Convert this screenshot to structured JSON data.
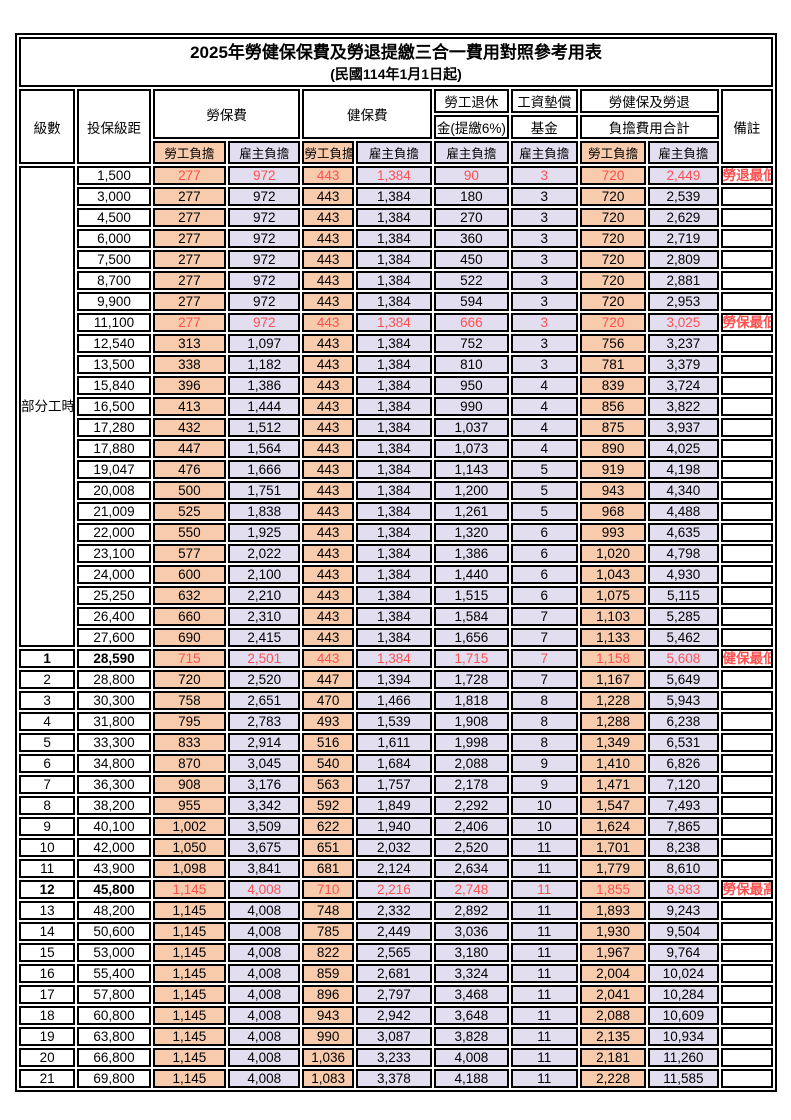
{
  "title": "2025年勞健保保費及勞退提繳三合一費用對照參考用表",
  "subtitle": "(民國114年1月1日起)",
  "header": {
    "level": "級數",
    "salary": "投保級距",
    "labor_ins": "勞保費",
    "health_ins": "健保費",
    "pension_line1": "勞工退休",
    "pension_line2": "金(提繳6%)",
    "wage_fund_line1": "工資墊償",
    "wage_fund_line2": "基金",
    "total_line1": "勞健保及勞退",
    "total_line2": "負擔費用合計",
    "note": "備註",
    "employee": "勞工負擔",
    "employer": "雇主負擔"
  },
  "part_time_label": "部分工時",
  "part_time_rowspan": 23,
  "colors": {
    "employee_fill": "#F8CBAD",
    "employer_fill": "#E2DEF0",
    "highlight_text": "#FF5050",
    "border": "#000000"
  },
  "rows": [
    {
      "lv": "",
      "sal": "1,500",
      "v": [
        "277",
        "972",
        "443",
        "1,384",
        "90",
        "3",
        "720",
        "2,449"
      ],
      "note": "勞退最低級距",
      "red": true,
      "big": false
    },
    {
      "lv": "",
      "sal": "3,000",
      "v": [
        "277",
        "972",
        "443",
        "1,384",
        "180",
        "3",
        "720",
        "2,539"
      ],
      "note": "",
      "red": false,
      "big": false
    },
    {
      "lv": "",
      "sal": "4,500",
      "v": [
        "277",
        "972",
        "443",
        "1,384",
        "270",
        "3",
        "720",
        "2,629"
      ],
      "note": "",
      "red": false,
      "big": false
    },
    {
      "lv": "",
      "sal": "6,000",
      "v": [
        "277",
        "972",
        "443",
        "1,384",
        "360",
        "3",
        "720",
        "2,719"
      ],
      "note": "",
      "red": false,
      "big": false
    },
    {
      "lv": "",
      "sal": "7,500",
      "v": [
        "277",
        "972",
        "443",
        "1,384",
        "450",
        "3",
        "720",
        "2,809"
      ],
      "note": "",
      "red": false,
      "big": false
    },
    {
      "lv": "",
      "sal": "8,700",
      "v": [
        "277",
        "972",
        "443",
        "1,384",
        "522",
        "3",
        "720",
        "2,881"
      ],
      "note": "",
      "red": false,
      "big": false
    },
    {
      "lv": "",
      "sal": "9,900",
      "v": [
        "277",
        "972",
        "443",
        "1,384",
        "594",
        "3",
        "720",
        "2,953"
      ],
      "note": "",
      "red": false,
      "big": false
    },
    {
      "lv": "",
      "sal": "11,100",
      "v": [
        "277",
        "972",
        "443",
        "1,384",
        "666",
        "3",
        "720",
        "3,025"
      ],
      "note": "勞保最低級距",
      "red": true,
      "big": false
    },
    {
      "lv": "",
      "sal": "12,540",
      "v": [
        "313",
        "1,097",
        "443",
        "1,384",
        "752",
        "3",
        "756",
        "3,237"
      ],
      "note": "",
      "red": false,
      "big": false
    },
    {
      "lv": "",
      "sal": "13,500",
      "v": [
        "338",
        "1,182",
        "443",
        "1,384",
        "810",
        "3",
        "781",
        "3,379"
      ],
      "note": "",
      "red": false,
      "big": false
    },
    {
      "lv": "",
      "sal": "15,840",
      "v": [
        "396",
        "1,386",
        "443",
        "1,384",
        "950",
        "4",
        "839",
        "3,724"
      ],
      "note": "",
      "red": false,
      "big": false
    },
    {
      "lv": "",
      "sal": "16,500",
      "v": [
        "413",
        "1,444",
        "443",
        "1,384",
        "990",
        "4",
        "856",
        "3,822"
      ],
      "note": "",
      "red": false,
      "big": false
    },
    {
      "lv": "",
      "sal": "17,280",
      "v": [
        "432",
        "1,512",
        "443",
        "1,384",
        "1,037",
        "4",
        "875",
        "3,937"
      ],
      "note": "",
      "red": false,
      "big": false
    },
    {
      "lv": "",
      "sal": "17,880",
      "v": [
        "447",
        "1,564",
        "443",
        "1,384",
        "1,073",
        "4",
        "890",
        "4,025"
      ],
      "note": "",
      "red": false,
      "big": false
    },
    {
      "lv": "",
      "sal": "19,047",
      "v": [
        "476",
        "1,666",
        "443",
        "1,384",
        "1,143",
        "5",
        "919",
        "4,198"
      ],
      "note": "",
      "red": false,
      "big": false
    },
    {
      "lv": "",
      "sal": "20,008",
      "v": [
        "500",
        "1,751",
        "443",
        "1,384",
        "1,200",
        "5",
        "943",
        "4,340"
      ],
      "note": "",
      "red": false,
      "big": false
    },
    {
      "lv": "",
      "sal": "21,009",
      "v": [
        "525",
        "1,838",
        "443",
        "1,384",
        "1,261",
        "5",
        "968",
        "4,488"
      ],
      "note": "",
      "red": false,
      "big": false
    },
    {
      "lv": "",
      "sal": "22,000",
      "v": [
        "550",
        "1,925",
        "443",
        "1,384",
        "1,320",
        "6",
        "993",
        "4,635"
      ],
      "note": "",
      "red": false,
      "big": false
    },
    {
      "lv": "",
      "sal": "23,100",
      "v": [
        "577",
        "2,022",
        "443",
        "1,384",
        "1,386",
        "6",
        "1,020",
        "4,798"
      ],
      "note": "",
      "red": false,
      "big": false
    },
    {
      "lv": "",
      "sal": "24,000",
      "v": [
        "600",
        "2,100",
        "443",
        "1,384",
        "1,440",
        "6",
        "1,043",
        "4,930"
      ],
      "note": "",
      "red": false,
      "big": false
    },
    {
      "lv": "",
      "sal": "25,250",
      "v": [
        "632",
        "2,210",
        "443",
        "1,384",
        "1,515",
        "6",
        "1,075",
        "5,115"
      ],
      "note": "",
      "red": false,
      "big": false
    },
    {
      "lv": "",
      "sal": "26,400",
      "v": [
        "660",
        "2,310",
        "443",
        "1,384",
        "1,584",
        "7",
        "1,103",
        "5,285"
      ],
      "note": "",
      "red": false,
      "big": false
    },
    {
      "lv": "",
      "sal": "27,600",
      "v": [
        "690",
        "2,415",
        "443",
        "1,384",
        "1,656",
        "7",
        "1,133",
        "5,462"
      ],
      "note": "",
      "red": false,
      "big": false
    },
    {
      "lv": "1",
      "sal": "28,590",
      "v": [
        "715",
        "2,501",
        "443",
        "1,384",
        "1,715",
        "7",
        "1,158",
        "5,608"
      ],
      "note": "健保最低級距",
      "red": true,
      "big": true
    },
    {
      "lv": "2",
      "sal": "28,800",
      "v": [
        "720",
        "2,520",
        "447",
        "1,394",
        "1,728",
        "7",
        "1,167",
        "5,649"
      ],
      "note": "",
      "red": false,
      "big": false
    },
    {
      "lv": "3",
      "sal": "30,300",
      "v": [
        "758",
        "2,651",
        "470",
        "1,466",
        "1,818",
        "8",
        "1,228",
        "5,943"
      ],
      "note": "",
      "red": false,
      "big": false
    },
    {
      "lv": "4",
      "sal": "31,800",
      "v": [
        "795",
        "2,783",
        "493",
        "1,539",
        "1,908",
        "8",
        "1,288",
        "6,238"
      ],
      "note": "",
      "red": false,
      "big": false
    },
    {
      "lv": "5",
      "sal": "33,300",
      "v": [
        "833",
        "2,914",
        "516",
        "1,611",
        "1,998",
        "8",
        "1,349",
        "6,531"
      ],
      "note": "",
      "red": false,
      "big": false
    },
    {
      "lv": "6",
      "sal": "34,800",
      "v": [
        "870",
        "3,045",
        "540",
        "1,684",
        "2,088",
        "9",
        "1,410",
        "6,826"
      ],
      "note": "",
      "red": false,
      "big": false
    },
    {
      "lv": "7",
      "sal": "36,300",
      "v": [
        "908",
        "3,176",
        "563",
        "1,757",
        "2,178",
        "9",
        "1,471",
        "7,120"
      ],
      "note": "",
      "red": false,
      "big": false
    },
    {
      "lv": "8",
      "sal": "38,200",
      "v": [
        "955",
        "3,342",
        "592",
        "1,849",
        "2,292",
        "10",
        "1,547",
        "7,493"
      ],
      "note": "",
      "red": false,
      "big": false
    },
    {
      "lv": "9",
      "sal": "40,100",
      "v": [
        "1,002",
        "3,509",
        "622",
        "1,940",
        "2,406",
        "10",
        "1,624",
        "7,865"
      ],
      "note": "",
      "red": false,
      "big": false
    },
    {
      "lv": "10",
      "sal": "42,000",
      "v": [
        "1,050",
        "3,675",
        "651",
        "2,032",
        "2,520",
        "11",
        "1,701",
        "8,238"
      ],
      "note": "",
      "red": false,
      "big": false
    },
    {
      "lv": "11",
      "sal": "43,900",
      "v": [
        "1,098",
        "3,841",
        "681",
        "2,124",
        "2,634",
        "11",
        "1,779",
        "8,610"
      ],
      "note": "",
      "red": false,
      "big": false
    },
    {
      "lv": "12",
      "sal": "45,800",
      "v": [
        "1,145",
        "4,008",
        "710",
        "2,216",
        "2,748",
        "11",
        "1,855",
        "8,983"
      ],
      "note": "勞保最高級距",
      "red": true,
      "big": true
    },
    {
      "lv": "13",
      "sal": "48,200",
      "v": [
        "1,145",
        "4,008",
        "748",
        "2,332",
        "2,892",
        "11",
        "1,893",
        "9,243"
      ],
      "note": "",
      "red": false,
      "big": false
    },
    {
      "lv": "14",
      "sal": "50,600",
      "v": [
        "1,145",
        "4,008",
        "785",
        "2,449",
        "3,036",
        "11",
        "1,930",
        "9,504"
      ],
      "note": "",
      "red": false,
      "big": false
    },
    {
      "lv": "15",
      "sal": "53,000",
      "v": [
        "1,145",
        "4,008",
        "822",
        "2,565",
        "3,180",
        "11",
        "1,967",
        "9,764"
      ],
      "note": "",
      "red": false,
      "big": false
    },
    {
      "lv": "16",
      "sal": "55,400",
      "v": [
        "1,145",
        "4,008",
        "859",
        "2,681",
        "3,324",
        "11",
        "2,004",
        "10,024"
      ],
      "note": "",
      "red": false,
      "big": false
    },
    {
      "lv": "17",
      "sal": "57,800",
      "v": [
        "1,145",
        "4,008",
        "896",
        "2,797",
        "3,468",
        "11",
        "2,041",
        "10,284"
      ],
      "note": "",
      "red": false,
      "big": false
    },
    {
      "lv": "18",
      "sal": "60,800",
      "v": [
        "1,145",
        "4,008",
        "943",
        "2,942",
        "3,648",
        "11",
        "2,088",
        "10,609"
      ],
      "note": "",
      "red": false,
      "big": false
    },
    {
      "lv": "19",
      "sal": "63,800",
      "v": [
        "1,145",
        "4,008",
        "990",
        "3,087",
        "3,828",
        "11",
        "2,135",
        "10,934"
      ],
      "note": "",
      "red": false,
      "big": false
    },
    {
      "lv": "20",
      "sal": "66,800",
      "v": [
        "1,145",
        "4,008",
        "1,036",
        "3,233",
        "4,008",
        "11",
        "2,181",
        "11,260"
      ],
      "note": "",
      "red": false,
      "big": false
    },
    {
      "lv": "21",
      "sal": "69,800",
      "v": [
        "1,145",
        "4,008",
        "1,083",
        "3,378",
        "4,188",
        "11",
        "2,228",
        "11,585"
      ],
      "note": "",
      "red": false,
      "big": false
    }
  ]
}
